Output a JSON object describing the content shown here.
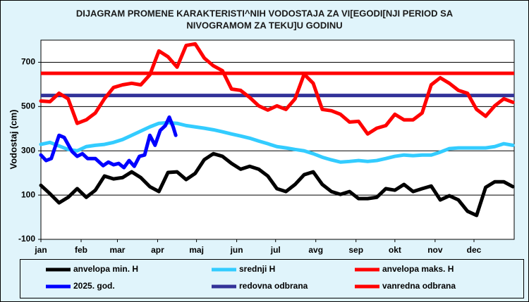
{
  "chart_data": {
    "type": "line",
    "title": [
      "DIJAGRAM  PROMENE KARAKTERISTI^NIH  VODOSTAJA ZA VI[EGODI[NJI PERIOD SA",
      "NIVOGRAMOM ZA TEKU]U GODINU"
    ],
    "ylabel": "Vodostaj (cm)",
    "xlim": [
      0,
      365
    ],
    "ylim": [
      -100,
      800
    ],
    "xticks": [
      {
        "value": 0,
        "label": "jan"
      },
      {
        "value": 31,
        "label": "feb"
      },
      {
        "value": 59,
        "label": "mar"
      },
      {
        "value": 90,
        "label": "apr"
      },
      {
        "value": 120,
        "label": "maj"
      },
      {
        "value": 151,
        "label": "jun"
      },
      {
        "value": 181,
        "label": "jul"
      },
      {
        "value": 212,
        "label": "avg"
      },
      {
        "value": 243,
        "label": "sep"
      },
      {
        "value": 273,
        "label": "okt"
      },
      {
        "value": 304,
        "label": "nov"
      },
      {
        "value": 334,
        "label": "dec"
      }
    ],
    "yticks": [
      -100,
      100,
      300,
      500,
      700
    ],
    "grid": true,
    "series": [
      {
        "name": "anvelopa min. H",
        "color": "#000000",
        "x": [
          0,
          7,
          14,
          21,
          28,
          35,
          42,
          49,
          56,
          63,
          70,
          77,
          84,
          91,
          98,
          105,
          112,
          119,
          126,
          133,
          140,
          147,
          154,
          161,
          168,
          175,
          182,
          189,
          196,
          203,
          210,
          217,
          224,
          231,
          238,
          245,
          252,
          259,
          266,
          273,
          280,
          287,
          294,
          301,
          308,
          315,
          322,
          329,
          336,
          343,
          350,
          357,
          364
        ],
        "values": [
          144,
          106,
          65,
          90,
          129,
          90,
          122,
          186,
          173,
          179,
          205,
          179,
          138,
          116,
          202,
          205,
          170,
          198,
          260,
          287,
          275,
          243,
          217,
          230,
          217,
          186,
          129,
          116,
          148,
          192,
          205,
          148,
          116,
          103,
          116,
          84,
          84,
          90,
          129,
          122,
          148,
          116,
          129,
          141,
          78,
          97,
          78,
          27,
          8,
          135,
          160,
          160,
          138
        ]
      },
      {
        "name": "srednji H",
        "color": "#33ccff",
        "x": [
          0,
          7,
          14,
          21,
          28,
          35,
          42,
          49,
          56,
          63,
          70,
          77,
          84,
          91,
          98,
          105,
          112,
          119,
          126,
          133,
          140,
          147,
          154,
          161,
          168,
          175,
          182,
          189,
          196,
          203,
          210,
          217,
          224,
          231,
          238,
          245,
          252,
          259,
          266,
          273,
          280,
          287,
          294,
          301,
          308,
          315,
          322,
          329,
          336,
          343,
          350,
          357,
          364
        ],
        "values": [
          329,
          338,
          322,
          306,
          300,
          319,
          325,
          329,
          338,
          351,
          370,
          389,
          408,
          424,
          427,
          424,
          414,
          408,
          402,
          395,
          386,
          376,
          367,
          357,
          344,
          332,
          319,
          313,
          306,
          300,
          287,
          271,
          259,
          249,
          252,
          256,
          252,
          256,
          265,
          275,
          281,
          278,
          281,
          281,
          294,
          310,
          313,
          313,
          313,
          313,
          319,
          332,
          325
        ]
      },
      {
        "name": "anvelopa maks. H",
        "color": "#ff0000",
        "x": [
          0,
          7,
          14,
          21,
          28,
          35,
          42,
          49,
          56,
          63,
          70,
          77,
          84,
          91,
          98,
          105,
          112,
          119,
          126,
          133,
          140,
          147,
          154,
          161,
          168,
          175,
          182,
          189,
          196,
          203,
          210,
          217,
          224,
          231,
          238,
          245,
          252,
          259,
          266,
          273,
          280,
          287,
          294,
          301,
          308,
          315,
          322,
          329,
          336,
          343,
          350,
          357,
          364
        ],
        "values": [
          525,
          522,
          560,
          535,
          424,
          440,
          471,
          535,
          586,
          598,
          605,
          598,
          643,
          751,
          725,
          678,
          776,
          783,
          719,
          684,
          662,
          579,
          573,
          541,
          503,
          484,
          503,
          487,
          535,
          646,
          605,
          487,
          481,
          465,
          430,
          433,
          376,
          402,
          414,
          465,
          440,
          440,
          471,
          598,
          630,
          605,
          573,
          560,
          487,
          456,
          503,
          535,
          519
        ]
      },
      {
        "name": "2025. god.",
        "color": "#0000ff",
        "x": [
          0,
          4,
          8,
          14,
          18,
          24,
          28,
          32,
          36,
          42,
          48,
          52,
          56,
          60,
          64,
          68,
          72,
          76,
          80,
          84,
          88,
          92,
          96,
          99,
          102,
          104
        ],
        "values": [
          281,
          256,
          265,
          370,
          360,
          297,
          275,
          287,
          265,
          265,
          233,
          249,
          237,
          243,
          224,
          256,
          230,
          275,
          281,
          370,
          325,
          392,
          414,
          452,
          408,
          370
        ]
      },
      {
        "name": "redovna odbrana",
        "color": "#333399",
        "value": 550
      },
      {
        "name": "vanredna odbrana",
        "color": "#ff0000",
        "value": 650
      }
    ]
  }
}
